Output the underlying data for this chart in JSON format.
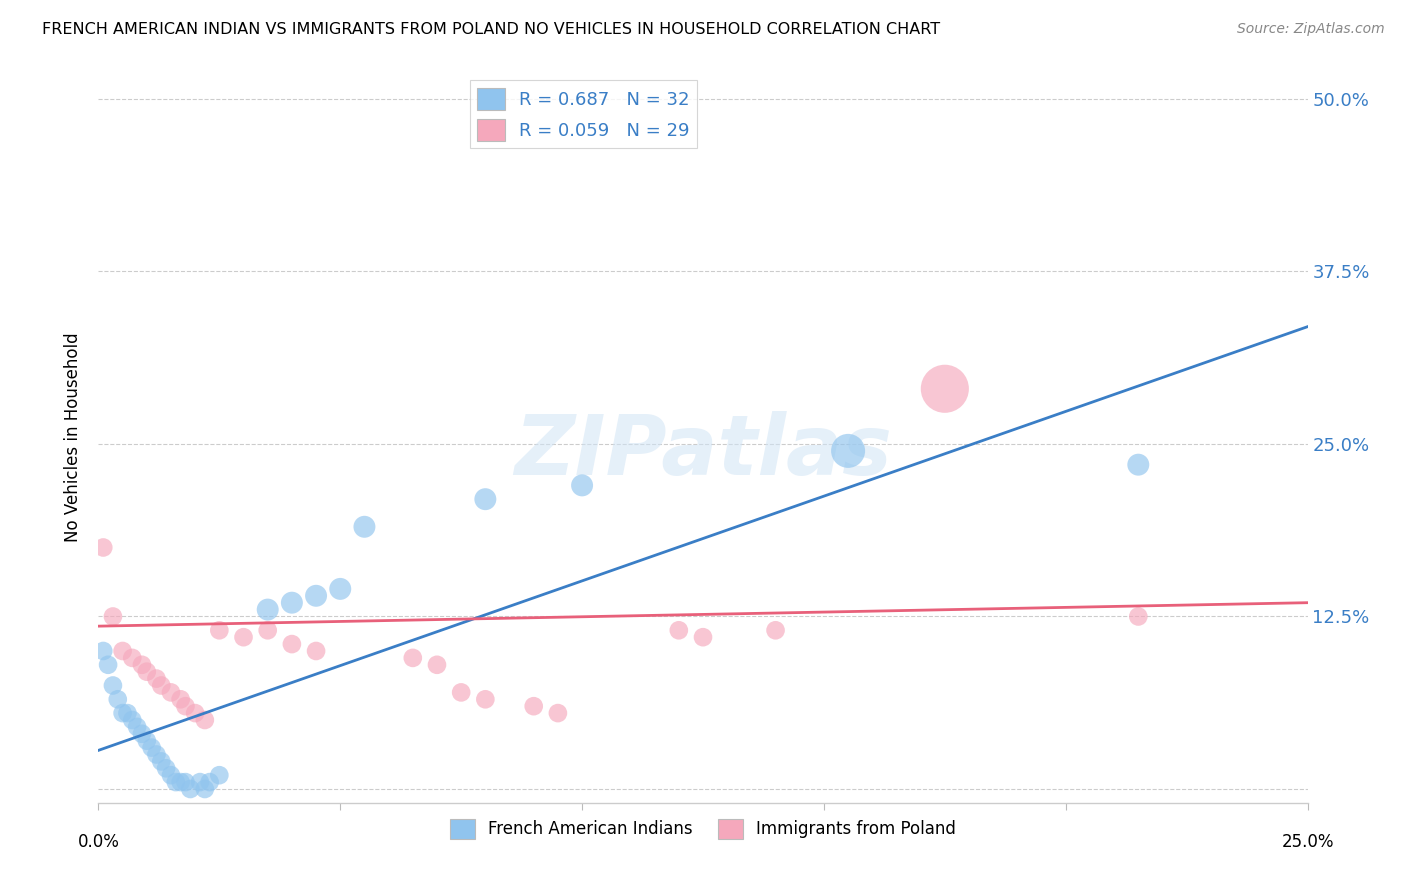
{
  "title": "FRENCH AMERICAN INDIAN VS IMMIGRANTS FROM POLAND NO VEHICLES IN HOUSEHOLD CORRELATION CHART",
  "source": "Source: ZipAtlas.com",
  "ylabel": "No Vehicles in Household",
  "legend_label1": "French American Indians",
  "legend_label2": "Immigrants from Poland",
  "R1": 0.687,
  "N1": 32,
  "R2": 0.059,
  "N2": 29,
  "xmin": 0.0,
  "xmax": 0.25,
  "ymin": -0.01,
  "ymax": 0.52,
  "yticks": [
    0.0,
    0.125,
    0.25,
    0.375,
    0.5
  ],
  "ytick_labels": [
    "",
    "12.5%",
    "25.0%",
    "37.5%",
    "50.0%"
  ],
  "xticks": [
    0.0,
    0.05,
    0.1,
    0.15,
    0.2,
    0.25
  ],
  "xtick_labels": [
    "0.0%",
    "",
    "",
    "",
    "",
    "25.0%"
  ],
  "color_blue": "#90C4EE",
  "color_pink": "#F5A8BC",
  "line_blue": "#3A7EC6",
  "line_pink": "#E8607A",
  "watermark": "ZIPatlas",
  "blue_line_x": [
    0.0,
    0.25
  ],
  "blue_line_y": [
    0.028,
    0.335
  ],
  "pink_line_x": [
    0.0,
    0.25
  ],
  "pink_line_y": [
    0.118,
    0.135
  ],
  "blue_points": [
    [
      0.001,
      0.1
    ],
    [
      0.002,
      0.09
    ],
    [
      0.003,
      0.075
    ],
    [
      0.004,
      0.065
    ],
    [
      0.005,
      0.055
    ],
    [
      0.006,
      0.055
    ],
    [
      0.007,
      0.05
    ],
    [
      0.008,
      0.045
    ],
    [
      0.009,
      0.04
    ],
    [
      0.01,
      0.035
    ],
    [
      0.011,
      0.03
    ],
    [
      0.012,
      0.025
    ],
    [
      0.013,
      0.02
    ],
    [
      0.014,
      0.015
    ],
    [
      0.015,
      0.01
    ],
    [
      0.016,
      0.005
    ],
    [
      0.017,
      0.005
    ],
    [
      0.018,
      0.005
    ],
    [
      0.019,
      0.0
    ],
    [
      0.021,
      0.005
    ],
    [
      0.022,
      0.0
    ],
    [
      0.023,
      0.005
    ],
    [
      0.025,
      0.01
    ],
    [
      0.035,
      0.13
    ],
    [
      0.04,
      0.135
    ],
    [
      0.045,
      0.14
    ],
    [
      0.05,
      0.145
    ],
    [
      0.055,
      0.19
    ],
    [
      0.08,
      0.21
    ],
    [
      0.1,
      0.22
    ],
    [
      0.155,
      0.245
    ],
    [
      0.215,
      0.235
    ]
  ],
  "blue_sizes": [
    180,
    180,
    180,
    180,
    180,
    180,
    180,
    180,
    180,
    180,
    180,
    180,
    180,
    180,
    180,
    180,
    180,
    180,
    180,
    180,
    180,
    180,
    180,
    250,
    250,
    250,
    250,
    250,
    250,
    250,
    600,
    250
  ],
  "pink_points": [
    [
      0.001,
      0.175
    ],
    [
      0.003,
      0.125
    ],
    [
      0.005,
      0.1
    ],
    [
      0.007,
      0.095
    ],
    [
      0.009,
      0.09
    ],
    [
      0.01,
      0.085
    ],
    [
      0.012,
      0.08
    ],
    [
      0.013,
      0.075
    ],
    [
      0.015,
      0.07
    ],
    [
      0.017,
      0.065
    ],
    [
      0.018,
      0.06
    ],
    [
      0.02,
      0.055
    ],
    [
      0.022,
      0.05
    ],
    [
      0.025,
      0.115
    ],
    [
      0.03,
      0.11
    ],
    [
      0.035,
      0.115
    ],
    [
      0.04,
      0.105
    ],
    [
      0.045,
      0.1
    ],
    [
      0.065,
      0.095
    ],
    [
      0.07,
      0.09
    ],
    [
      0.075,
      0.07
    ],
    [
      0.08,
      0.065
    ],
    [
      0.09,
      0.06
    ],
    [
      0.095,
      0.055
    ],
    [
      0.12,
      0.115
    ],
    [
      0.125,
      0.11
    ],
    [
      0.14,
      0.115
    ],
    [
      0.175,
      0.29
    ],
    [
      0.215,
      0.125
    ]
  ],
  "pink_sizes": [
    180,
    180,
    180,
    180,
    180,
    180,
    180,
    180,
    180,
    180,
    180,
    180,
    180,
    180,
    180,
    180,
    180,
    180,
    180,
    180,
    180,
    180,
    180,
    180,
    180,
    180,
    180,
    1200,
    180
  ]
}
